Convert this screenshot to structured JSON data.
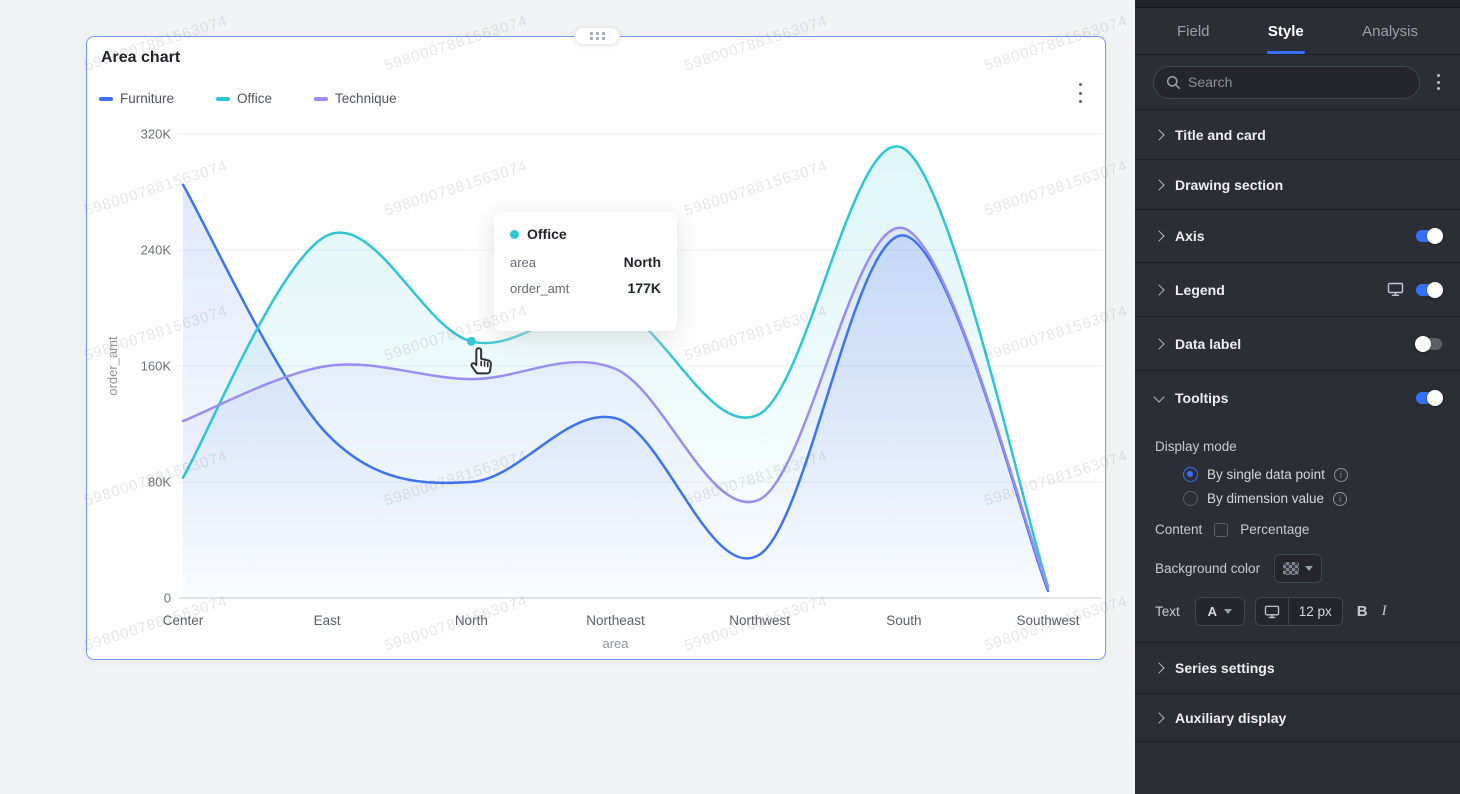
{
  "watermark": {
    "text": "5980007881563074"
  },
  "card": {
    "title": "Area chart"
  },
  "chart_data": {
    "type": "area",
    "title": "Area chart",
    "categories": [
      "Center",
      "East",
      "North",
      "Northeast",
      "Northwest",
      "South",
      "Southwest"
    ],
    "xlabel": "area",
    "ylabel": "order_amt",
    "unit": "K",
    "ymax": 320,
    "ytick_values": [
      320,
      240,
      160,
      80,
      0
    ],
    "ytick_labels": [
      "320K",
      "240K",
      "160K",
      "80K",
      "0"
    ],
    "grid": true,
    "legend_position": "top-left",
    "series": [
      {
        "name": "Furniture",
        "color": "#3D73F0",
        "values": [
          285,
          113,
          80,
          124,
          30,
          250,
          5
        ]
      },
      {
        "name": "Office",
        "color": "#2EC5D5",
        "values": [
          83,
          250,
          177,
          200,
          127,
          310,
          8
        ]
      },
      {
        "name": "Technique",
        "color": "#9B8CF2",
        "values": [
          122,
          160,
          151,
          158,
          68,
          255,
          7
        ]
      }
    ],
    "hover_point": {
      "series_index": 1,
      "category_index": 2
    }
  },
  "tooltip": {
    "series": "Office",
    "color": "#2EC5D5",
    "rows": [
      {
        "label": "area",
        "value": "North"
      },
      {
        "label": "order_amt",
        "value": "177K"
      }
    ]
  },
  "panel": {
    "accent": "#3370FF",
    "tabs": [
      {
        "label": "Field",
        "active": false
      },
      {
        "label": "Style",
        "active": true
      },
      {
        "label": "Analysis",
        "active": false
      }
    ],
    "search_placeholder": "Search",
    "sections": [
      {
        "label": "Title and card"
      },
      {
        "label": "Drawing section"
      },
      {
        "label": "Axis",
        "toggle": "on"
      },
      {
        "label": "Legend",
        "toggle": "on",
        "monitor": true
      },
      {
        "label": "Data label",
        "toggle": "off"
      },
      {
        "label": "Tooltips",
        "toggle": "on",
        "expanded": true
      },
      {
        "label": "Series settings"
      },
      {
        "label": "Auxiliary display"
      }
    ],
    "tooltips_settings": {
      "display_mode_label": "Display mode",
      "options": [
        {
          "label": "By single data point",
          "selected": true
        },
        {
          "label": "By dimension value",
          "selected": false
        }
      ],
      "content_label": "Content",
      "percentage_label": "Percentage",
      "percentage_checked": false,
      "background_color_label": "Background color",
      "text_label": "Text",
      "font_color_button": "A",
      "font_size": "12 px",
      "bold_label": "B",
      "italic_label": "I"
    }
  }
}
